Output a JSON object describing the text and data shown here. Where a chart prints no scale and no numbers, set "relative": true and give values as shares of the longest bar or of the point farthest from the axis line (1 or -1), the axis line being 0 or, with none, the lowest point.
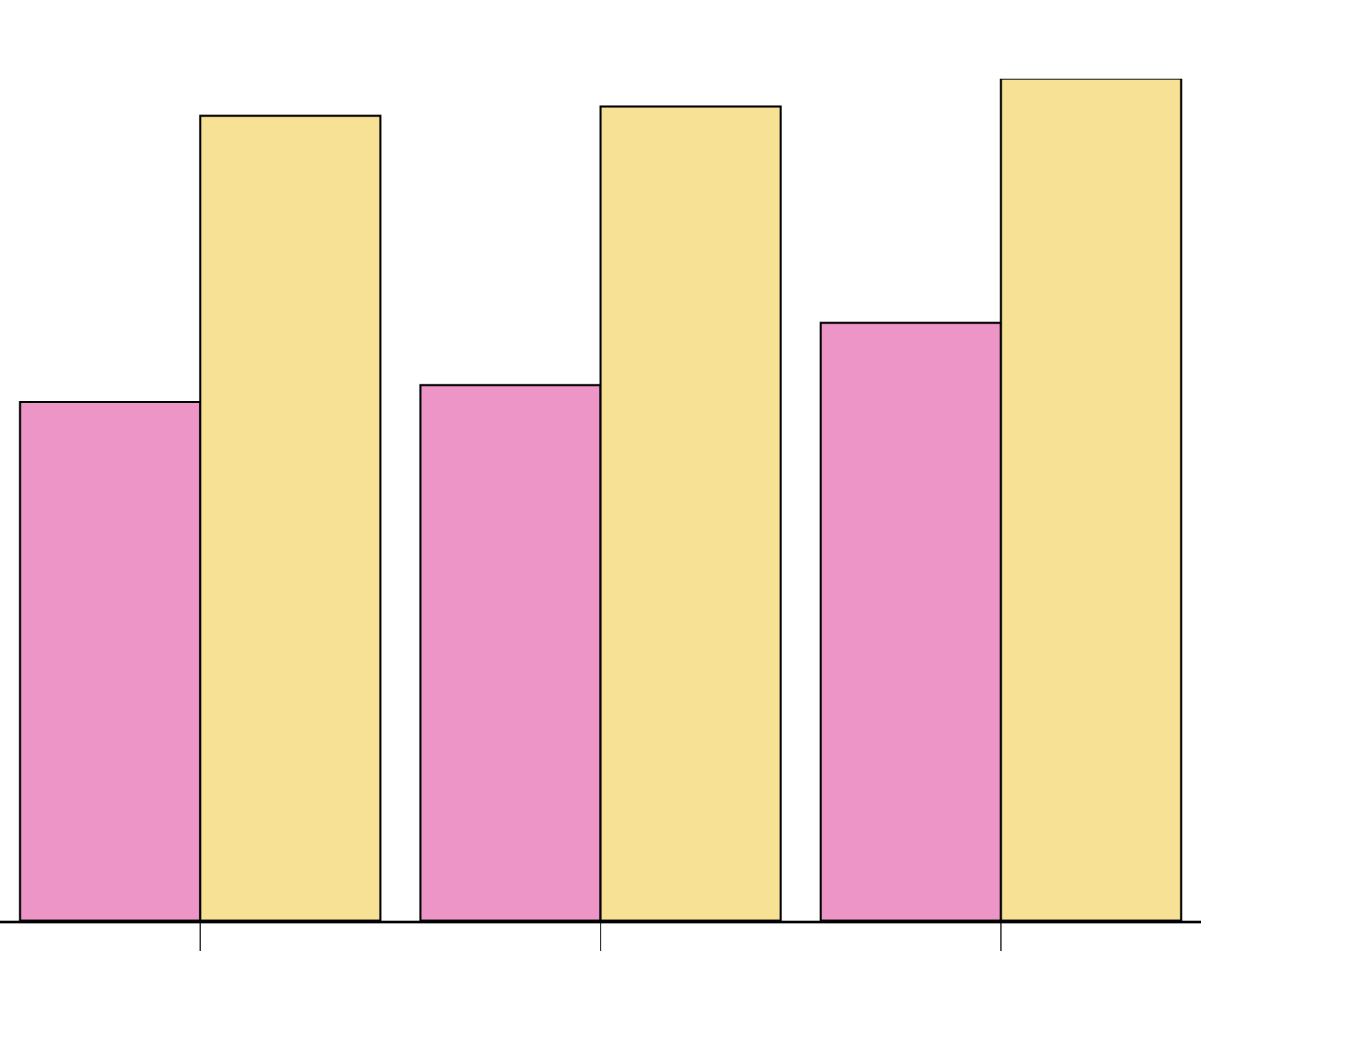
{
  "chart_data": {
    "type": "bar",
    "relative": true,
    "categories": [
      null,
      null,
      null
    ],
    "series": [
      {
        "color": "#ee95c8",
        "values": [
          0.616,
          0.636,
          0.71
        ]
      },
      {
        "color": "#f7e194",
        "values": [
          0.956,
          0.967,
          1
        ]
      }
    ]
  }
}
